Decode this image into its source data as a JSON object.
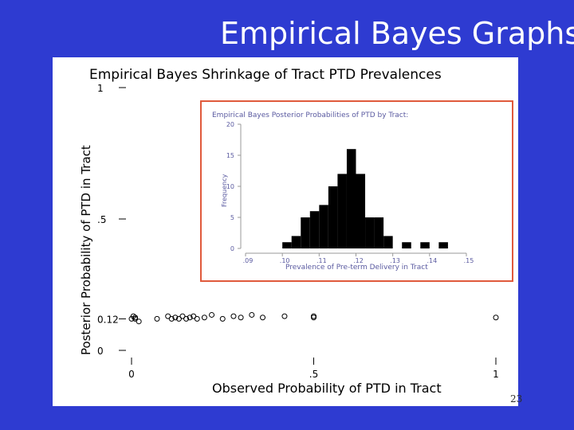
{
  "slide": {
    "title": "Empirical Bayes Graphs",
    "page_number": "23",
    "colors": {
      "background": "#2e3bd1",
      "panel": "#ffffff",
      "inset_border": "#e05a3c",
      "inset_text": "#5a5aa0"
    }
  },
  "chart_data": [
    {
      "type": "scatter",
      "title": "Empirical Bayes Shrinkage of Tract PTD Prevalences",
      "xlabel": "Observed Probability of PTD in Tract",
      "ylabel": "Posterior Probability of PTD in Tract",
      "xlim": [
        0,
        1
      ],
      "ylim": [
        0,
        1
      ],
      "x_ticks": [
        {
          "value": 0,
          "label": "0"
        },
        {
          "value": 0.5,
          "label": ".5"
        },
        {
          "value": 1,
          "label": "1"
        }
      ],
      "y_ticks": [
        {
          "value": 0,
          "label": "0"
        },
        {
          "value": 0.12,
          "label": "0.12"
        },
        {
          "value": 0.5,
          "label": ".5"
        },
        {
          "value": 1,
          "label": "1"
        }
      ],
      "marker": "hollow-circle",
      "points": [
        {
          "x": 0.0,
          "y": 0.12
        },
        {
          "x": 0.005,
          "y": 0.13
        },
        {
          "x": 0.01,
          "y": 0.12
        },
        {
          "x": 0.02,
          "y": 0.11
        },
        {
          "x": 0.01,
          "y": 0.125
        },
        {
          "x": 0.07,
          "y": 0.12
        },
        {
          "x": 0.1,
          "y": 0.13
        },
        {
          "x": 0.11,
          "y": 0.12
        },
        {
          "x": 0.12,
          "y": 0.125
        },
        {
          "x": 0.13,
          "y": 0.12
        },
        {
          "x": 0.14,
          "y": 0.13
        },
        {
          "x": 0.15,
          "y": 0.12
        },
        {
          "x": 0.16,
          "y": 0.125
        },
        {
          "x": 0.17,
          "y": 0.13
        },
        {
          "x": 0.18,
          "y": 0.12
        },
        {
          "x": 0.2,
          "y": 0.125
        },
        {
          "x": 0.22,
          "y": 0.135
        },
        {
          "x": 0.25,
          "y": 0.12
        },
        {
          "x": 0.28,
          "y": 0.13
        },
        {
          "x": 0.3,
          "y": 0.125
        },
        {
          "x": 0.33,
          "y": 0.135
        },
        {
          "x": 0.36,
          "y": 0.125
        },
        {
          "x": 0.42,
          "y": 0.13
        },
        {
          "x": 0.5,
          "y": 0.13
        },
        {
          "x": 0.5,
          "y": 0.125
        },
        {
          "x": 1.0,
          "y": 0.125
        }
      ]
    },
    {
      "type": "bar",
      "title": "Empirical Bayes Posterior Probabilities of PTD by Tract:",
      "xlabel": "Prevalence of Pre-term Delivery in Tract",
      "ylabel": "Frequency",
      "x_range": [
        0.09,
        0.15
      ],
      "x_ticks": [
        {
          "value": 0.09,
          "label": ".09"
        },
        {
          "value": 0.1,
          "label": ".10"
        },
        {
          "value": 0.11,
          "label": ".11"
        },
        {
          "value": 0.12,
          "label": ".12"
        },
        {
          "value": 0.13,
          "label": ".13"
        },
        {
          "value": 0.14,
          "label": ".14"
        },
        {
          "value": 0.15,
          "label": ".15"
        }
      ],
      "ylim": [
        0,
        20
      ],
      "y_ticks": [
        {
          "value": 0,
          "label": "0"
        },
        {
          "value": 5,
          "label": "5"
        },
        {
          "value": 10,
          "label": "10"
        },
        {
          "value": 15,
          "label": "15"
        },
        {
          "value": 20,
          "label": "20"
        }
      ],
      "bin_width": 0.0025,
      "bins": [
        {
          "start": 0.1,
          "count": 1
        },
        {
          "start": 0.1025,
          "count": 2
        },
        {
          "start": 0.105,
          "count": 5
        },
        {
          "start": 0.1075,
          "count": 6
        },
        {
          "start": 0.11,
          "count": 7
        },
        {
          "start": 0.1125,
          "count": 10
        },
        {
          "start": 0.115,
          "count": 12
        },
        {
          "start": 0.1175,
          "count": 16
        },
        {
          "start": 0.12,
          "count": 12
        },
        {
          "start": 0.1225,
          "count": 5
        },
        {
          "start": 0.125,
          "count": 5
        },
        {
          "start": 0.1275,
          "count": 2
        },
        {
          "start": 0.1325,
          "count": 1
        },
        {
          "start": 0.1375,
          "count": 1
        },
        {
          "start": 0.1425,
          "count": 1
        }
      ]
    }
  ]
}
